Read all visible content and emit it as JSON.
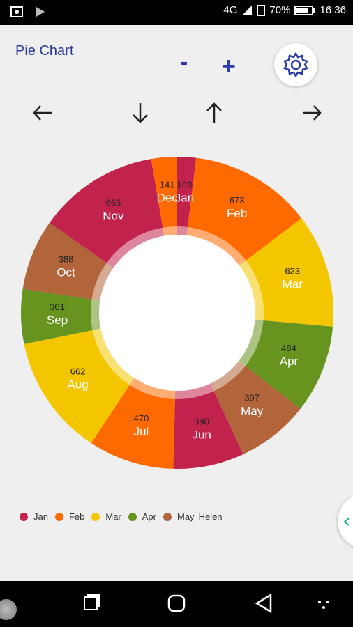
{
  "status": {
    "network": "4G",
    "battery": "70%",
    "time": "16:36"
  },
  "header": {
    "title": "Pie Chart",
    "minus_label": "-",
    "plus_label": "+"
  },
  "colors": {
    "jan": "#c2234d",
    "feb": "#ff6a00",
    "mar": "#f3c600",
    "apr": "#66941f",
    "may": "#b2653a"
  },
  "chart_data": {
    "type": "pie",
    "categories": [
      "Jan",
      "Feb",
      "Mar",
      "Apr",
      "May",
      "Jun",
      "Jul",
      "Aug",
      "Sep",
      "Oct",
      "Nov",
      "Dec"
    ],
    "values": [
      103,
      673,
      623,
      484,
      397,
      390,
      470,
      662,
      301,
      388,
      665,
      141
    ],
    "title": "",
    "xlabel": "",
    "ylabel": ""
  },
  "legend": {
    "items": [
      "Jan",
      "Feb",
      "Mar",
      "Apr",
      "May"
    ],
    "extra": "Helen"
  }
}
